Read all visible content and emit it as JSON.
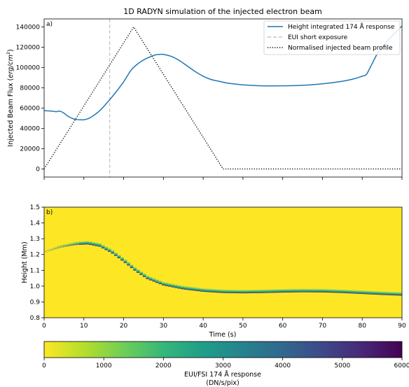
{
  "chart_data": [
    {
      "type": "line",
      "panel_label": "a)",
      "title": "1D RADYN simulation of the injected electron beam",
      "ylabel_main": "Injected Beam Flux (",
      "ylabel_unit": "erg/cm",
      "ylabel_sup": "2",
      "ylabel_close": ")",
      "xlim": [
        0,
        90
      ],
      "ylim": [
        -8000,
        148000
      ],
      "yticks": [
        "0",
        "20000",
        "40000",
        "60000",
        "80000",
        "100000",
        "120000",
        "140000"
      ],
      "ytick_values": [
        0,
        20000,
        40000,
        60000,
        80000,
        100000,
        120000,
        140000
      ],
      "xtick_values": [
        0,
        10,
        20,
        30,
        40,
        50,
        60,
        70,
        80,
        90
      ],
      "legend_position": "top-right",
      "series": [
        {
          "name": "Height integrated 174 Å response",
          "color": "#1f77b4",
          "style": "solid",
          "x": [
            0,
            2,
            3,
            4,
            5,
            6,
            7,
            8,
            9,
            10,
            11,
            12,
            14,
            16,
            18,
            20,
            22,
            24,
            26,
            28,
            29,
            30,
            32,
            34,
            36,
            38,
            40,
            42,
            44,
            46,
            50,
            55,
            60,
            65,
            70,
            75,
            78,
            80,
            81,
            82,
            84,
            86,
            88,
            90
          ],
          "y": [
            57500,
            57000,
            56500,
            57000,
            55000,
            52000,
            50000,
            48800,
            48500,
            48500,
            49500,
            51500,
            57500,
            66000,
            75500,
            86000,
            98000,
            105000,
            109500,
            112500,
            113000,
            113000,
            111000,
            107000,
            101500,
            96000,
            91500,
            88200,
            86500,
            84800,
            83000,
            82000,
            82000,
            82500,
            84000,
            86500,
            89000,
            91500,
            93000,
            100000,
            115000,
            125000,
            133000,
            141000
          ]
        },
        {
          "name": "EUI short exposure",
          "color": "#bbbbbb",
          "style": "dashed",
          "x_value": 16.5
        },
        {
          "name": "Normalised injected beam profile",
          "color": "#000000",
          "style": "dotted",
          "x": [
            0,
            22.5,
            45,
            90
          ],
          "y": [
            0,
            140000,
            0,
            0
          ]
        }
      ]
    },
    {
      "type": "heatmap",
      "panel_label": "b)",
      "xlabel": "Time (s)",
      "ylabel": "Height (Mm)",
      "xlim": [
        0,
        90
      ],
      "ylim": [
        0.8,
        1.5
      ],
      "xticks": [
        "0",
        "10",
        "20",
        "30",
        "40",
        "50",
        "60",
        "70",
        "80",
        "90"
      ],
      "xtick_values": [
        0,
        10,
        20,
        30,
        40,
        50,
        60,
        70,
        80,
        90
      ],
      "yticks": [
        "0.8",
        "0.9",
        "1.0",
        "1.1",
        "1.2",
        "1.3",
        "1.4",
        "1.5"
      ],
      "ytick_values": [
        0.8,
        0.9,
        1.0,
        1.1,
        1.2,
        1.3,
        1.4,
        1.5
      ],
      "background_color": "#fde725",
      "colormap": "viridis_r",
      "ridge": {
        "t": [
          0,
          4,
          8,
          11,
          14,
          17,
          20,
          23,
          26,
          30,
          35,
          40,
          45,
          50,
          55,
          60,
          65,
          70,
          75,
          80,
          85,
          88,
          90
        ],
        "h": [
          1.22,
          1.255,
          1.275,
          1.28,
          1.265,
          1.225,
          1.17,
          1.11,
          1.06,
          1.02,
          0.995,
          0.98,
          0.972,
          0.97,
          0.972,
          0.975,
          0.977,
          0.976,
          0.972,
          0.966,
          0.96,
          0.957,
          0.955
        ]
      }
    }
  ],
  "colorbar": {
    "label_line1": "EUI/FSI 174 Å response",
    "label_line2": "(DN/s/pix)",
    "range": [
      0,
      6000
    ],
    "ticks": [
      "0",
      "1000",
      "2000",
      "3000",
      "4000",
      "5000",
      "6000"
    ],
    "tick_values": [
      0,
      1000,
      2000,
      3000,
      4000,
      5000,
      6000
    ],
    "gradient_colors": [
      "#fde725",
      "#b5de2b",
      "#6ece58",
      "#35b779",
      "#1f9e89",
      "#26828e",
      "#31688e",
      "#3e4989",
      "#482878",
      "#440154"
    ]
  }
}
